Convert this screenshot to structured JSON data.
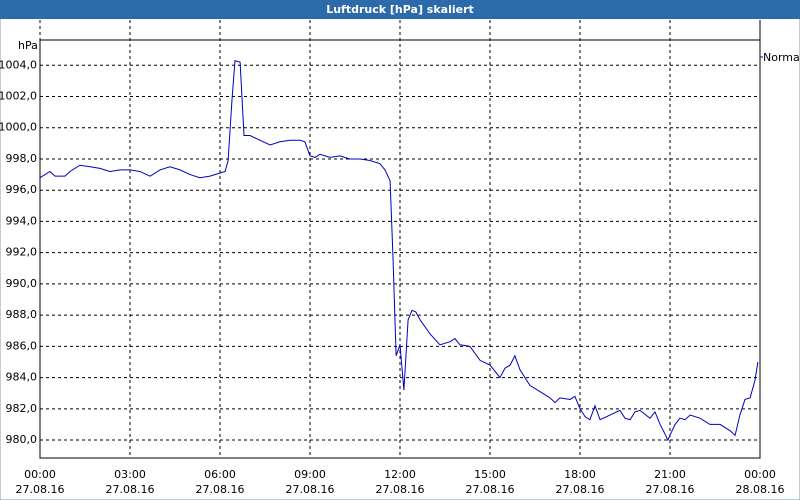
{
  "chart_data": {
    "type": "line",
    "title": "Luftdruck [hPa] skaliert",
    "y_label": "hPa",
    "grid": true,
    "legend_position": "top-right",
    "series": [
      {
        "name": "Normal",
        "color": "#0000c0",
        "x": [
          0,
          0.33,
          0.5,
          0.83,
          1.0,
          1.33,
          1.67,
          2.0,
          2.33,
          2.67,
          3.0,
          3.33,
          3.67,
          4.0,
          4.33,
          4.67,
          5.0,
          5.33,
          5.67,
          6.0,
          6.17,
          6.27,
          6.4,
          6.5,
          6.67,
          6.8,
          7.0,
          7.33,
          7.67,
          8.0,
          8.33,
          8.67,
          8.83,
          9.0,
          9.17,
          9.33,
          9.67,
          10.0,
          10.33,
          10.67,
          11.0,
          11.33,
          11.5,
          11.67,
          11.77,
          11.87,
          12.0,
          12.13,
          12.27,
          12.4,
          12.53,
          12.67,
          13.0,
          13.33,
          13.67,
          13.83,
          14.0,
          14.33,
          14.67,
          15.0,
          15.17,
          15.33,
          15.5,
          15.67,
          15.83,
          16.0,
          16.33,
          16.67,
          17.0,
          17.17,
          17.33,
          17.67,
          17.83,
          18.0,
          18.17,
          18.33,
          18.5,
          18.67,
          19.0,
          19.33,
          19.5,
          19.67,
          19.83,
          20.0,
          20.33,
          20.5,
          20.67,
          20.83,
          20.93,
          21.07,
          21.17,
          21.33,
          21.5,
          21.67,
          22.0,
          22.33,
          22.67,
          23.0,
          23.17,
          23.33,
          23.5,
          23.67,
          23.83,
          23.93
        ],
        "values": [
          996.8,
          997.2,
          996.9,
          996.9,
          997.2,
          997.6,
          997.5,
          997.4,
          997.2,
          997.3,
          997.3,
          997.2,
          996.9,
          997.3,
          997.5,
          997.3,
          997.0,
          996.8,
          996.9,
          997.1,
          997.2,
          997.9,
          1001.8,
          1004.3,
          1004.2,
          999.5,
          999.5,
          999.2,
          998.9,
          999.1,
          999.2,
          999.2,
          999.1,
          998.2,
          998.1,
          998.3,
          998.1,
          998.2,
          998.0,
          998.0,
          997.9,
          997.7,
          997.3,
          996.6,
          991.5,
          985.4,
          986.1,
          983.2,
          987.7,
          988.3,
          988.2,
          987.7,
          986.8,
          986.1,
          986.3,
          986.5,
          986.1,
          986.0,
          985.1,
          984.8,
          984.4,
          984.0,
          984.6,
          984.8,
          985.4,
          984.5,
          983.5,
          983.1,
          982.7,
          982.4,
          982.7,
          982.6,
          982.8,
          982.0,
          981.5,
          981.3,
          982.2,
          981.3,
          981.6,
          981.9,
          981.4,
          981.3,
          981.8,
          981.9,
          981.4,
          981.8,
          981.0,
          980.4,
          980.0,
          980.6,
          981.0,
          981.4,
          981.3,
          981.6,
          981.4,
          981.0,
          981.0,
          980.6,
          980.3,
          981.6,
          982.6,
          982.7,
          983.8,
          985.0
        ]
      }
    ],
    "xlim": [
      0,
      24
    ],
    "xticks": [
      {
        "value": 0,
        "label": "00:00",
        "date": "27.08.16"
      },
      {
        "value": 3,
        "label": "03:00",
        "date": "27.08.16"
      },
      {
        "value": 6,
        "label": "06:00",
        "date": "27.08.16"
      },
      {
        "value": 9,
        "label": "09:00",
        "date": "27.08.16"
      },
      {
        "value": 12,
        "label": "12:00",
        "date": "27.08.16"
      },
      {
        "value": 15,
        "label": "15:00",
        "date": "27.08.16"
      },
      {
        "value": 18,
        "label": "18:00",
        "date": "27.08.16"
      },
      {
        "value": 21,
        "label": "21:00",
        "date": "27.08.16"
      },
      {
        "value": 24,
        "label": "00:00",
        "date": "28.08.16"
      }
    ],
    "ylim": [
      978.85,
      1006.9
    ],
    "yticks": [
      {
        "value": 980,
        "label": "980,0"
      },
      {
        "value": 982,
        "label": "982,0"
      },
      {
        "value": 984,
        "label": "984,0"
      },
      {
        "value": 986,
        "label": "986,0"
      },
      {
        "value": 988,
        "label": "988,0"
      },
      {
        "value": 990,
        "label": "990,0"
      },
      {
        "value": 992,
        "label": "992,0"
      },
      {
        "value": 994,
        "label": "994,0"
      },
      {
        "value": 996,
        "label": "996,0"
      },
      {
        "value": 998,
        "label": "998,0"
      },
      {
        "value": 1000,
        "label": "1000,0"
      },
      {
        "value": 1002,
        "label": "1002,0"
      },
      {
        "value": 1004,
        "label": "1004,0"
      }
    ]
  }
}
